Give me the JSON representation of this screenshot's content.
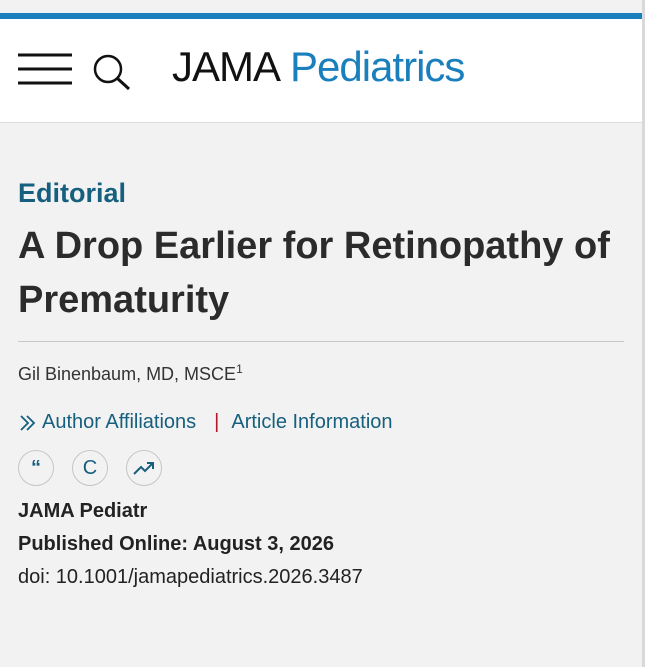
{
  "header": {
    "brand_bold": "JAMA",
    "brand_light": "Pediatrics"
  },
  "article": {
    "type": "Editorial",
    "title": "A Drop Earlier for Retinopathy of Prematurity",
    "author": "Gil Binenbaum, MD, MSCE",
    "author_sup": "1",
    "links": [
      "Author Affiliations",
      "Article Information"
    ],
    "toolbar": {
      "cite": "“",
      "copyright": "C"
    },
    "journal": "JAMA Pediatr",
    "published": "Published Online: August 3, 2026",
    "doi": "doi: 10.1001/jamapediatrics.2026.3487"
  }
}
